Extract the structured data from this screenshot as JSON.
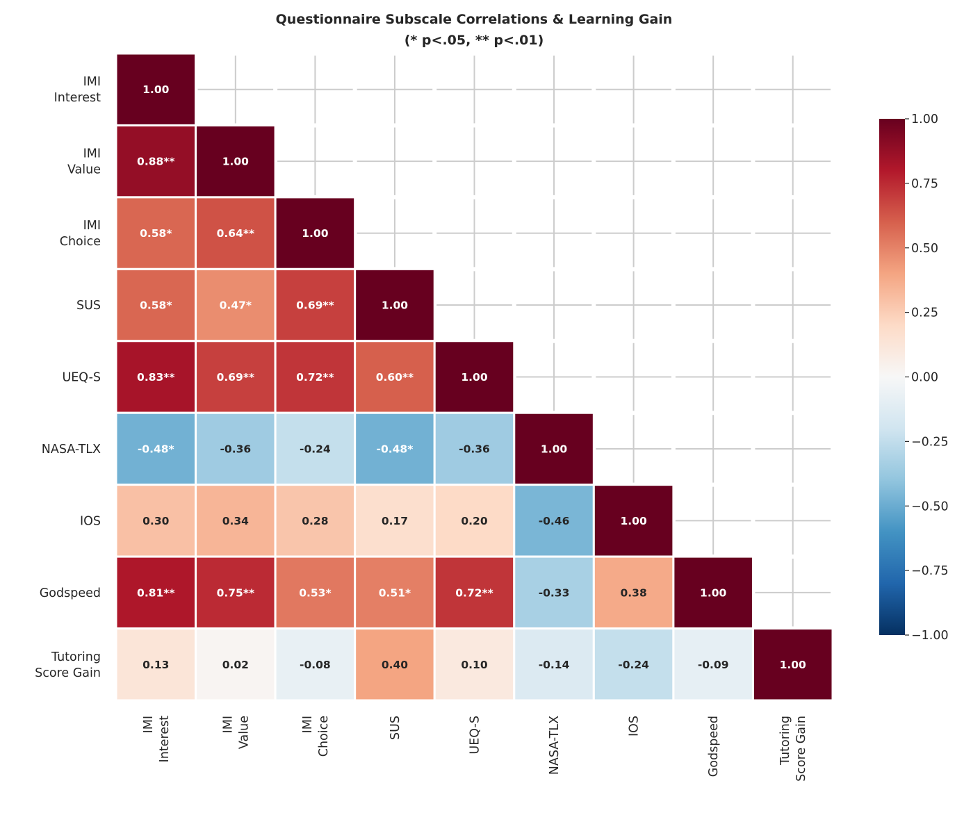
{
  "chart_data": {
    "type": "heatmap",
    "title": "Questionnaire Subscale Correlations & Learning Gain",
    "subtitle": "(* p<.05, ** p<.01)",
    "labels": [
      "IMI\nInterest",
      "IMI\nValue",
      "IMI\nChoice",
      "SUS",
      "UEQ-S",
      "NASA-TLX",
      "IOS",
      "Godspeed",
      "Tutoring\nScore Gain"
    ],
    "lower_triangle_values": [
      [
        1.0
      ],
      [
        0.88,
        1.0
      ],
      [
        0.58,
        0.64,
        1.0
      ],
      [
        0.58,
        0.47,
        0.69,
        1.0
      ],
      [
        0.83,
        0.69,
        0.72,
        0.6,
        1.0
      ],
      [
        -0.48,
        -0.36,
        -0.24,
        -0.48,
        -0.36,
        1.0
      ],
      [
        0.3,
        0.34,
        0.28,
        0.17,
        0.2,
        -0.46,
        1.0
      ],
      [
        0.81,
        0.75,
        0.53,
        0.51,
        0.72,
        -0.33,
        0.38,
        1.0
      ],
      [
        0.13,
        0.02,
        -0.08,
        0.4,
        0.1,
        -0.14,
        -0.24,
        -0.09,
        1.0
      ]
    ],
    "annotations": [
      [
        "1.00"
      ],
      [
        "0.88**",
        "1.00"
      ],
      [
        "0.58*",
        "0.64**",
        "1.00"
      ],
      [
        "0.58*",
        "0.47*",
        "0.69**",
        "1.00"
      ],
      [
        "0.83**",
        "0.69**",
        "0.72**",
        "0.60**",
        "1.00"
      ],
      [
        "-0.48*",
        "-0.36",
        "-0.24",
        "-0.48*",
        "-0.36",
        "1.00"
      ],
      [
        "0.30",
        "0.34",
        "0.28",
        "0.17",
        "0.20",
        "-0.46",
        "1.00"
      ],
      [
        "0.81**",
        "0.75**",
        "0.53*",
        "0.51*",
        "0.72**",
        "-0.33",
        "0.38",
        "1.00"
      ],
      [
        "0.13",
        "0.02",
        "-0.08",
        "0.40",
        "0.10",
        "-0.14",
        "-0.24",
        "-0.09",
        "1.00"
      ]
    ],
    "colormap": "RdBu_r",
    "colormap_stops": [
      "#053061",
      "#2166ac",
      "#4393c3",
      "#92c5de",
      "#d1e5f0",
      "#f7f7f7",
      "#fddbc7",
      "#f4a582",
      "#d6604d",
      "#b2182b",
      "#67001f"
    ],
    "vmin": -1,
    "vmax": 1,
    "colorbar_ticks": [
      "1.00",
      "0.75",
      "0.50",
      "0.25",
      "0.00",
      "−0.25",
      "−0.50",
      "−0.75",
      "−1.00"
    ],
    "colorbar_tick_values": [
      1,
      0.75,
      0.5,
      0.25,
      0,
      -0.25,
      -0.5,
      -0.75,
      -1
    ],
    "grid": true,
    "mask": "upper triangle"
  }
}
